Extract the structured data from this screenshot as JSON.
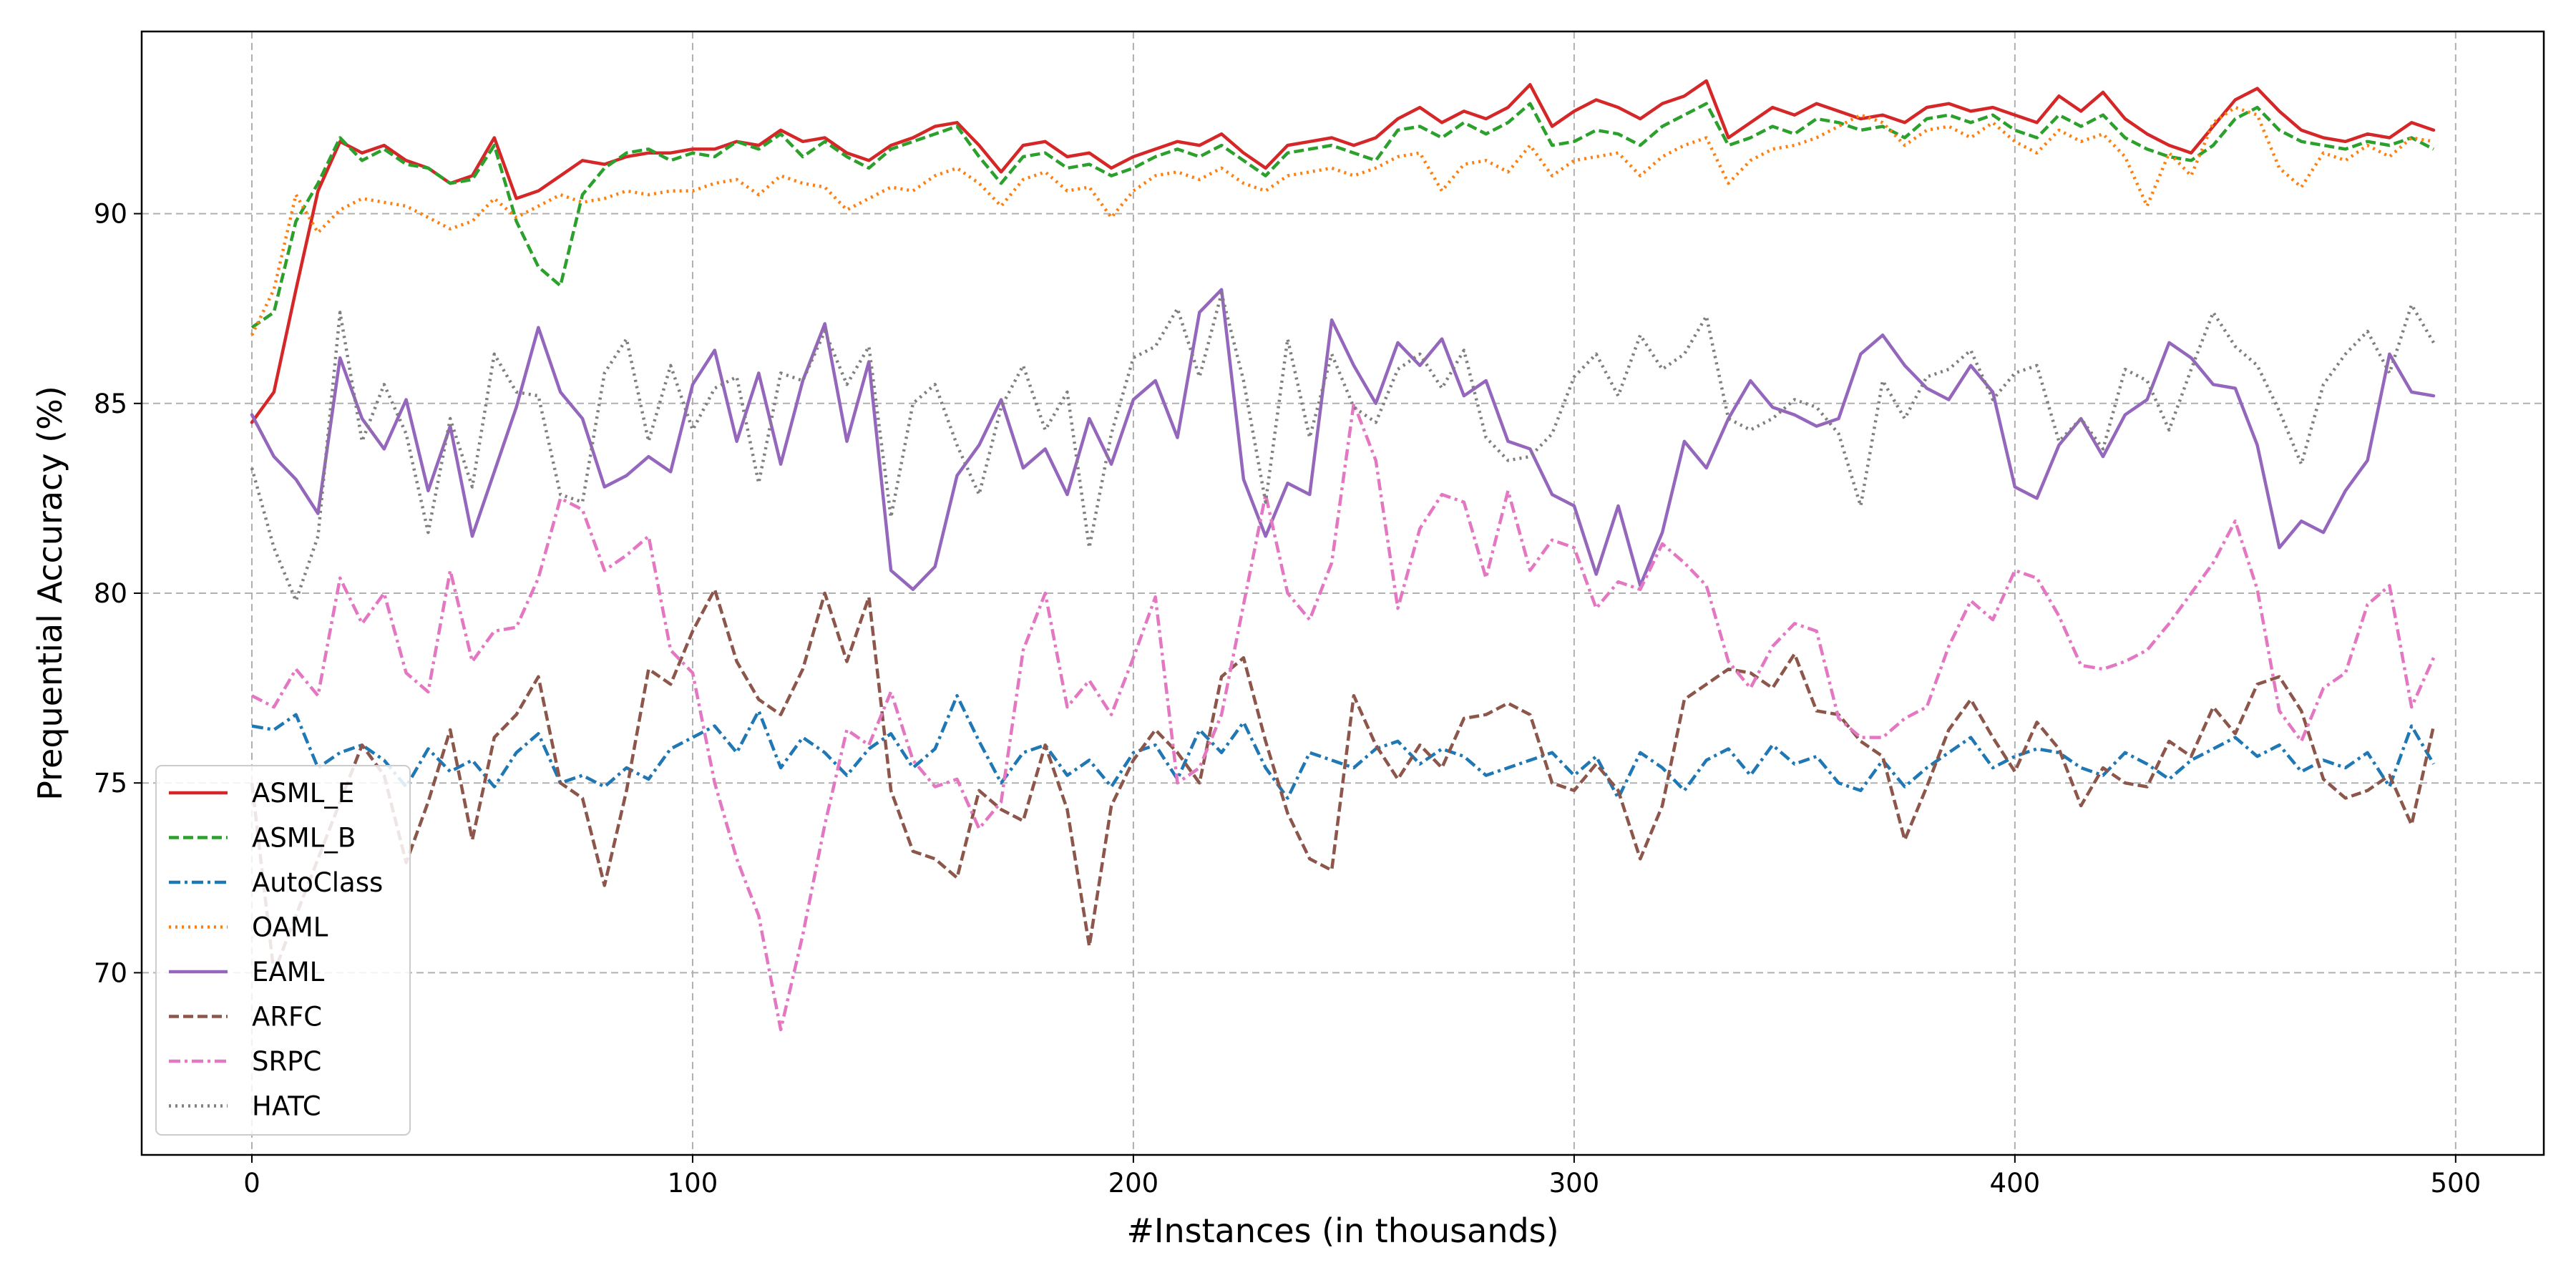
{
  "chart_data": {
    "type": "line",
    "title": "",
    "xlabel": "#Instances (in thousands)",
    "ylabel": "Prequential Accuracy (%)",
    "xlim": [
      -25,
      520
    ],
    "ylim": [
      65.2,
      94.8
    ],
    "xticks": [
      0,
      100,
      200,
      300,
      400,
      500
    ],
    "yticks": [
      70,
      75,
      80,
      85,
      90
    ],
    "grid": true,
    "legend_position": "lower-left",
    "x": [
      0,
      5,
      10,
      15,
      20,
      25,
      30,
      35,
      40,
      45,
      50,
      55,
      60,
      65,
      70,
      75,
      80,
      85,
      90,
      95,
      100,
      105,
      110,
      115,
      120,
      125,
      130,
      135,
      140,
      145,
      150,
      155,
      160,
      165,
      170,
      175,
      180,
      185,
      190,
      195,
      200,
      205,
      210,
      215,
      220,
      225,
      230,
      235,
      240,
      245,
      250,
      255,
      260,
      265,
      270,
      275,
      280,
      285,
      290,
      295,
      300,
      305,
      310,
      315,
      320,
      325,
      330,
      335,
      340,
      345,
      350,
      355,
      360,
      365,
      370,
      375,
      380,
      385,
      390,
      395,
      400,
      405,
      410,
      415,
      420,
      425,
      430,
      435,
      440,
      445,
      450,
      455,
      460,
      465,
      470,
      475,
      480,
      485,
      490,
      495
    ],
    "series": [
      {
        "name": "ASML_E",
        "color": "#d62728",
        "style": "solid",
        "values": [
          84.5,
          85.3,
          88.0,
          90.6,
          91.9,
          91.6,
          91.8,
          91.4,
          91.2,
          90.8,
          91.0,
          92.0,
          90.4,
          90.6,
          91.0,
          91.4,
          91.3,
          91.5,
          91.6,
          91.6,
          91.7,
          91.7,
          91.9,
          91.8,
          92.2,
          91.9,
          92.0,
          91.6,
          91.4,
          91.8,
          92.0,
          92.3,
          92.4,
          91.8,
          91.1,
          91.8,
          91.9,
          91.5,
          91.6,
          91.2,
          91.5,
          91.7,
          91.9,
          91.8,
          92.1,
          91.6,
          91.2,
          91.8,
          91.9,
          92.0,
          91.8,
          92.0,
          92.5,
          92.8,
          92.4,
          92.7,
          92.5,
          92.8,
          93.4,
          92.3,
          92.7,
          93.0,
          92.8,
          92.5,
          92.9,
          93.1,
          93.5,
          92.0,
          92.4,
          92.8,
          92.6,
          92.9,
          92.7,
          92.5,
          92.6,
          92.4,
          92.8,
          92.9,
          92.7,
          92.8,
          92.6,
          92.4,
          93.1,
          92.7,
          93.2,
          92.5,
          92.1,
          91.8,
          91.6,
          92.3,
          93.0,
          93.3,
          92.7,
          92.2,
          92.0,
          91.9,
          92.1,
          92.0,
          92.4,
          92.2
        ]
      },
      {
        "name": "ASML_B",
        "color": "#2ca02c",
        "style": "dashed",
        "values": [
          87.0,
          87.4,
          89.8,
          90.8,
          92.0,
          91.4,
          91.7,
          91.3,
          91.2,
          90.8,
          90.9,
          91.8,
          89.8,
          88.6,
          88.1,
          90.5,
          91.2,
          91.6,
          91.7,
          91.4,
          91.6,
          91.5,
          91.9,
          91.7,
          92.1,
          91.5,
          91.9,
          91.5,
          91.2,
          91.7,
          91.9,
          92.1,
          92.3,
          91.5,
          90.8,
          91.5,
          91.6,
          91.2,
          91.3,
          91.0,
          91.2,
          91.5,
          91.7,
          91.5,
          91.8,
          91.4,
          91.0,
          91.6,
          91.7,
          91.8,
          91.6,
          91.4,
          92.2,
          92.3,
          92.0,
          92.4,
          92.1,
          92.4,
          92.9,
          91.8,
          91.9,
          92.2,
          92.1,
          91.8,
          92.3,
          92.6,
          92.9,
          91.8,
          92.0,
          92.3,
          92.1,
          92.5,
          92.4,
          92.2,
          92.3,
          92.0,
          92.5,
          92.6,
          92.4,
          92.6,
          92.2,
          92.0,
          92.6,
          92.3,
          92.6,
          92.0,
          91.7,
          91.5,
          91.4,
          91.8,
          92.5,
          92.8,
          92.2,
          91.9,
          91.8,
          91.7,
          91.9,
          91.8,
          92.0,
          91.7
        ]
      },
      {
        "name": "AutoClass",
        "color": "#1f77b4",
        "style": "dashdot",
        "values": [
          76.5,
          76.4,
          76.8,
          75.4,
          75.8,
          76.0,
          75.6,
          74.9,
          75.9,
          75.3,
          75.6,
          74.9,
          75.8,
          76.3,
          75.0,
          75.2,
          74.9,
          75.4,
          75.1,
          75.9,
          76.2,
          76.5,
          75.8,
          76.9,
          75.4,
          76.2,
          75.8,
          75.2,
          75.9,
          76.3,
          75.4,
          75.9,
          77.3,
          76.1,
          75.0,
          75.8,
          76.0,
          75.2,
          75.6,
          74.9,
          75.8,
          76.0,
          75.1,
          76.4,
          75.8,
          76.6,
          75.4,
          74.6,
          75.8,
          75.6,
          75.4,
          75.9,
          76.1,
          75.5,
          75.9,
          75.7,
          75.2,
          75.4,
          75.6,
          75.8,
          75.2,
          75.7,
          74.6,
          75.8,
          75.4,
          74.8,
          75.6,
          75.9,
          75.2,
          76.0,
          75.5,
          75.7,
          75.0,
          74.8,
          75.6,
          74.9,
          75.4,
          75.8,
          76.2,
          75.4,
          75.7,
          75.9,
          75.8,
          75.4,
          75.2,
          75.8,
          75.5,
          75.1,
          75.6,
          75.9,
          76.2,
          75.7,
          76.0,
          75.3,
          75.6,
          75.4,
          75.8,
          74.9,
          76.5,
          75.5
        ]
      },
      {
        "name": "OAML",
        "color": "#ff7f0e",
        "style": "dotted",
        "values": [
          86.8,
          88.0,
          90.5,
          89.5,
          90.1,
          90.4,
          90.3,
          90.2,
          89.9,
          89.6,
          89.8,
          90.4,
          89.9,
          90.2,
          90.5,
          90.3,
          90.4,
          90.6,
          90.5,
          90.6,
          90.6,
          90.8,
          90.9,
          90.5,
          91.0,
          90.8,
          90.7,
          90.1,
          90.4,
          90.7,
          90.6,
          91.0,
          91.2,
          90.8,
          90.2,
          90.9,
          91.1,
          90.6,
          90.7,
          89.9,
          90.6,
          91.0,
          91.1,
          90.9,
          91.2,
          90.8,
          90.6,
          91.0,
          91.1,
          91.2,
          91.0,
          91.2,
          91.5,
          91.6,
          90.6,
          91.3,
          91.4,
          91.1,
          91.8,
          91.0,
          91.4,
          91.5,
          91.6,
          91.0,
          91.5,
          91.8,
          92.0,
          90.8,
          91.4,
          91.7,
          91.8,
          92.0,
          92.3,
          92.6,
          92.4,
          91.8,
          92.2,
          92.3,
          92.0,
          92.4,
          91.9,
          91.6,
          92.2,
          91.9,
          92.1,
          91.5,
          90.2,
          91.6,
          91.0,
          92.4,
          92.8,
          92.6,
          91.2,
          90.7,
          91.6,
          91.4,
          91.8,
          91.5,
          92.0,
          91.9
        ]
      },
      {
        "name": "EAML",
        "color": "#9467bd",
        "style": "solid",
        "values": [
          84.7,
          83.6,
          83.0,
          82.1,
          86.2,
          84.6,
          83.8,
          85.1,
          82.7,
          84.4,
          81.5,
          83.2,
          84.9,
          87.0,
          85.3,
          84.6,
          82.8,
          83.1,
          83.6,
          83.2,
          85.5,
          86.4,
          84.0,
          85.8,
          83.4,
          85.6,
          87.1,
          84.0,
          86.1,
          80.6,
          80.1,
          80.7,
          83.1,
          83.9,
          85.1,
          83.3,
          83.8,
          82.6,
          84.6,
          83.4,
          85.1,
          85.6,
          84.1,
          87.4,
          88.0,
          83.0,
          81.5,
          82.9,
          82.6,
          87.2,
          86.0,
          85.0,
          86.6,
          86.0,
          86.7,
          85.2,
          85.6,
          84.0,
          83.8,
          82.6,
          82.3,
          80.5,
          82.3,
          80.2,
          81.6,
          84.0,
          83.3,
          84.6,
          85.6,
          84.9,
          84.7,
          84.4,
          84.6,
          86.3,
          86.8,
          86.0,
          85.4,
          85.1,
          86.0,
          85.3,
          82.8,
          82.5,
          83.9,
          84.6,
          83.6,
          84.7,
          85.1,
          86.6,
          86.2,
          85.5,
          85.4,
          83.9,
          81.2,
          81.9,
          81.6,
          82.7,
          83.5,
          86.3,
          85.3,
          85.2
        ]
      },
      {
        "name": "ARFC",
        "color": "#8c564b",
        "style": "dashed",
        "values": [
          75.0,
          70.0,
          71.5,
          73.0,
          74.5,
          76.0,
          75.2,
          72.9,
          74.5,
          76.4,
          73.5,
          76.2,
          76.8,
          77.8,
          75.0,
          74.6,
          72.3,
          74.8,
          78.0,
          77.6,
          79.0,
          80.1,
          78.2,
          77.2,
          76.8,
          78.0,
          80.0,
          78.2,
          79.9,
          74.8,
          73.2,
          73.0,
          72.5,
          74.8,
          74.3,
          74.0,
          76.0,
          74.3,
          70.7,
          74.4,
          75.6,
          76.4,
          75.8,
          75.0,
          77.8,
          78.3,
          76.1,
          74.2,
          73.0,
          72.7,
          77.3,
          76.0,
          75.1,
          76.0,
          75.4,
          76.7,
          76.8,
          77.1,
          76.8,
          75.0,
          74.8,
          75.5,
          74.8,
          73.0,
          74.4,
          77.2,
          77.6,
          78.0,
          77.9,
          77.5,
          78.4,
          76.9,
          76.8,
          76.1,
          75.7,
          73.5,
          74.9,
          76.4,
          77.2,
          76.2,
          75.3,
          76.6,
          75.9,
          74.4,
          75.4,
          75.0,
          74.9,
          76.1,
          75.7,
          77.0,
          76.3,
          77.6,
          77.8,
          76.9,
          75.1,
          74.6,
          74.8,
          75.2,
          73.9,
          76.5
        ]
      },
      {
        "name": "SRPC",
        "color": "#e377c2",
        "style": "dashdot",
        "values": [
          77.3,
          77.0,
          78.0,
          77.3,
          80.4,
          79.2,
          80.0,
          77.9,
          77.4,
          80.6,
          78.2,
          79.0,
          79.1,
          80.4,
          82.5,
          82.2,
          80.6,
          81.0,
          81.5,
          78.5,
          77.9,
          75.0,
          73.0,
          71.5,
          68.5,
          71.0,
          73.9,
          76.4,
          76.0,
          77.4,
          75.6,
          74.9,
          75.1,
          73.8,
          74.5,
          78.5,
          80.0,
          77.0,
          77.7,
          76.8,
          78.3,
          79.9,
          75.0,
          75.4,
          76.8,
          79.7,
          82.6,
          80.0,
          79.3,
          80.8,
          85.0,
          83.5,
          79.6,
          81.7,
          82.6,
          82.4,
          80.4,
          82.7,
          80.6,
          81.4,
          81.2,
          79.6,
          80.3,
          80.1,
          81.3,
          80.8,
          80.2,
          78.2,
          77.5,
          78.6,
          79.2,
          79.0,
          76.7,
          76.2,
          76.2,
          76.7,
          77.0,
          78.6,
          79.8,
          79.3,
          80.6,
          80.4,
          79.4,
          78.1,
          78.0,
          78.2,
          78.5,
          79.2,
          80.0,
          80.8,
          81.9,
          80.1,
          76.9,
          76.1,
          77.5,
          77.9,
          79.7,
          80.2,
          77.0,
          78.3
        ]
      },
      {
        "name": "HATC",
        "color": "#7f7f7f",
        "style": "dotted",
        "values": [
          83.3,
          81.2,
          79.8,
          81.5,
          87.4,
          84.0,
          85.5,
          84.2,
          81.6,
          84.6,
          82.8,
          86.3,
          85.3,
          85.2,
          82.6,
          82.4,
          85.8,
          86.7,
          84.0,
          86.0,
          84.3,
          85.4,
          85.7,
          82.9,
          85.8,
          85.6,
          86.9,
          85.5,
          86.5,
          82.0,
          85.0,
          85.5,
          83.9,
          82.6,
          84.9,
          86.0,
          84.3,
          85.3,
          81.2,
          84.2,
          86.2,
          86.5,
          87.5,
          85.7,
          87.9,
          85.6,
          82.4,
          86.7,
          84.1,
          86.3,
          84.9,
          84.5,
          85.9,
          86.3,
          85.4,
          86.4,
          84.1,
          83.5,
          83.6,
          84.2,
          85.7,
          86.3,
          85.2,
          86.8,
          85.9,
          86.3,
          87.3,
          84.6,
          84.3,
          84.6,
          85.1,
          84.9,
          84.2,
          82.3,
          85.6,
          84.6,
          85.7,
          85.9,
          86.4,
          85.1,
          85.8,
          86.0,
          84.0,
          84.6,
          83.8,
          85.9,
          85.6,
          84.3,
          85.9,
          87.4,
          86.5,
          86.0,
          84.8,
          83.4,
          85.5,
          86.3,
          86.9,
          85.8,
          87.6,
          86.6
        ]
      }
    ]
  }
}
